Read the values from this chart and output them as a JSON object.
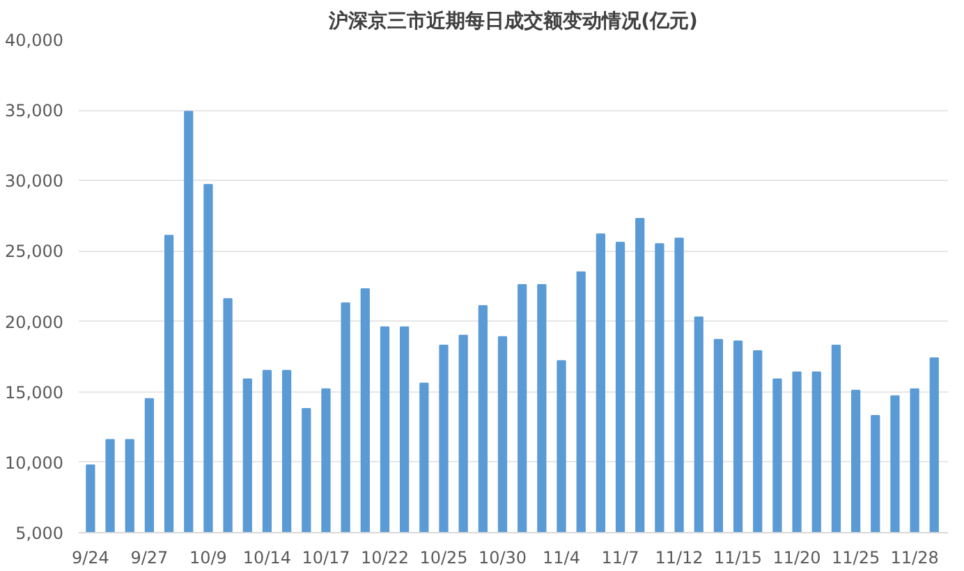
{
  "chart_data": {
    "type": "bar",
    "title": "沪深京三市近期每日成交额变动情况(亿元)",
    "categories": [
      "9/24",
      null,
      null,
      "9/27",
      null,
      null,
      "10/9",
      null,
      null,
      "10/14",
      null,
      null,
      "10/17",
      null,
      null,
      "10/22",
      null,
      null,
      "10/25",
      null,
      null,
      "10/30",
      null,
      null,
      "11/4",
      null,
      null,
      "11/7",
      null,
      null,
      "11/12",
      null,
      null,
      "11/15",
      null,
      null,
      "11/20",
      null,
      null,
      "11/25",
      null,
      null,
      "11/28",
      null
    ],
    "values": [
      9800,
      11600,
      11600,
      14500,
      26100,
      34900,
      29700,
      21600,
      15900,
      16500,
      16500,
      13800,
      15200,
      21300,
      22300,
      19600,
      19600,
      15600,
      18300,
      19000,
      21100,
      18900,
      22600,
      22600,
      17200,
      23500,
      26200,
      25600,
      27300,
      25500,
      25900,
      20300,
      18700,
      18600,
      17900,
      15900,
      16400,
      16400,
      18300,
      15100,
      13300,
      14700,
      15200,
      17400
    ],
    "color": "#5b9bd5",
    "ylim": [
      5000,
      40000
    ],
    "yticks": [
      {
        "value": 5000,
        "label": "5,000"
      },
      {
        "value": 10000,
        "label": "10,000"
      },
      {
        "value": 15000,
        "label": "15,000"
      },
      {
        "value": 20000,
        "label": "20,000"
      },
      {
        "value": 25000,
        "label": "25,000"
      },
      {
        "value": 30000,
        "label": "30,000"
      },
      {
        "value": 35000,
        "label": "35,000"
      },
      {
        "value": 40000,
        "label": "40,000"
      }
    ],
    "grid": "y"
  }
}
